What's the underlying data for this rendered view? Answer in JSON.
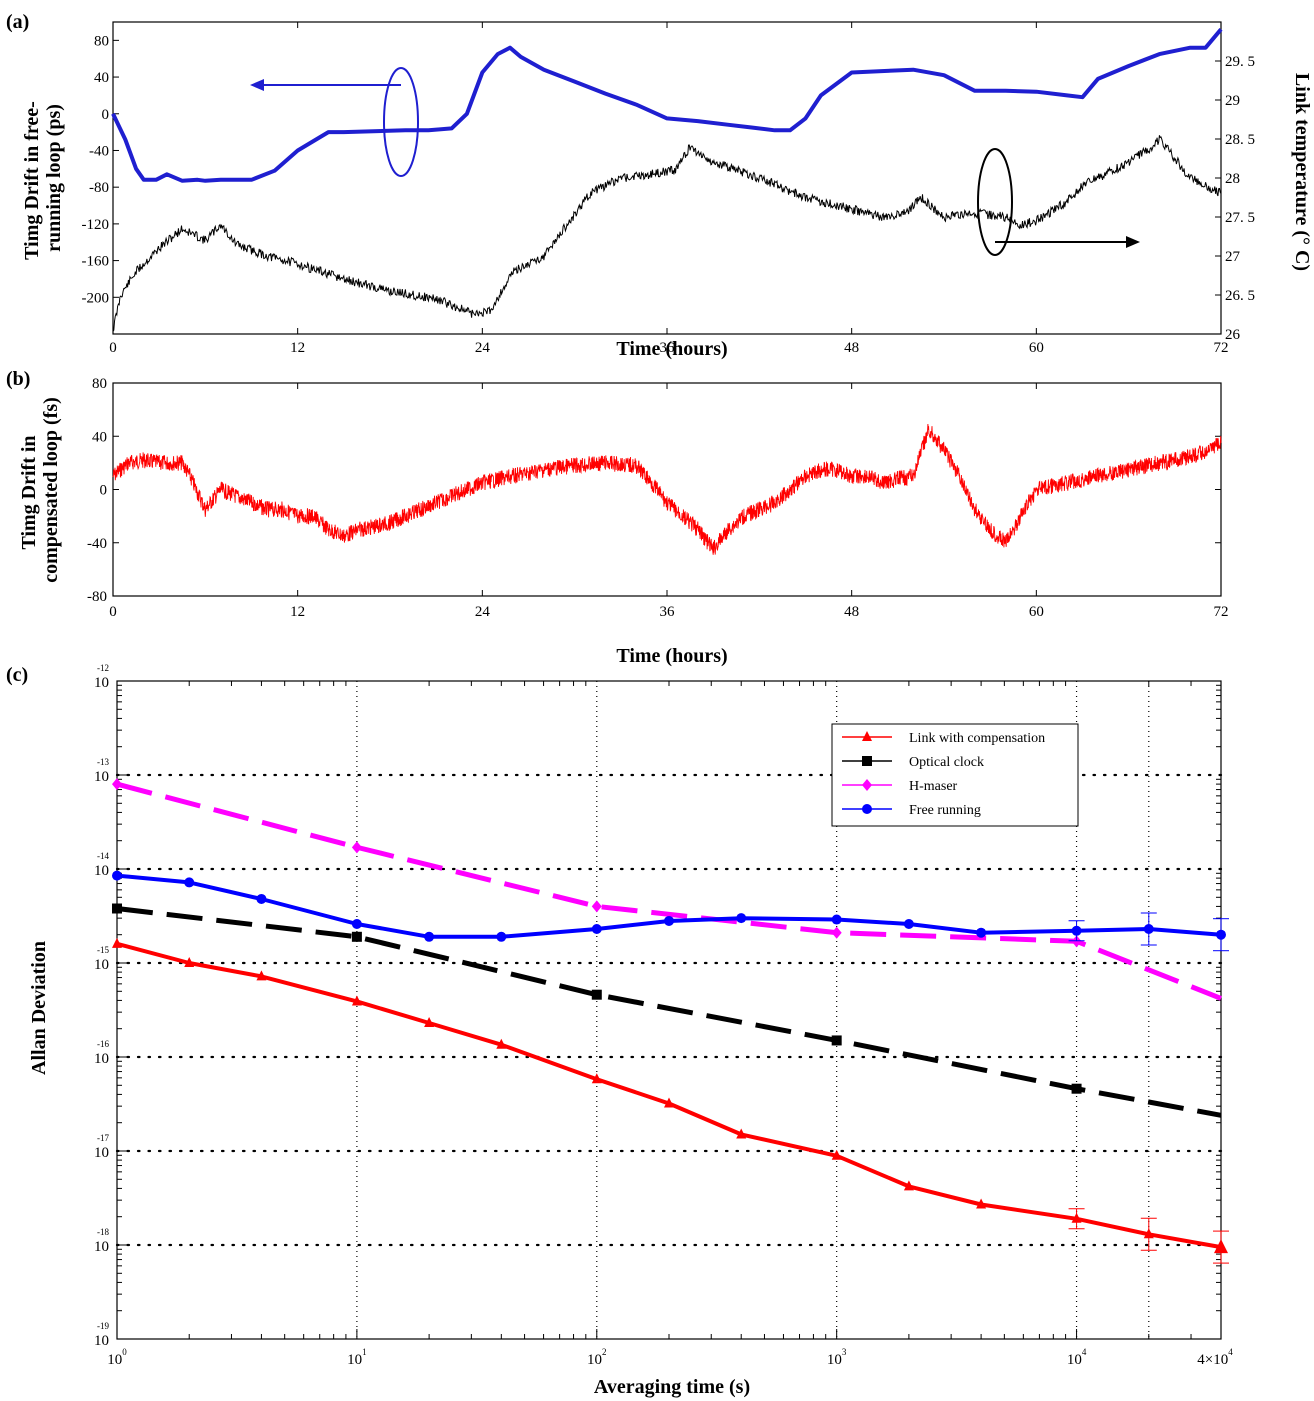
{
  "chart_data": [
    {
      "panel_label": "(a)",
      "type": "line",
      "xlabel": "Time (hours)",
      "ylabel_left": "Timg Drift in free-running loop (ps)",
      "ylabel_right": "Link temperature (° C)",
      "xlim": [
        0,
        72
      ],
      "ylim_left": [
        -240,
        100
      ],
      "ylim_right": [
        26,
        30
      ],
      "x_ticks": [
        "0",
        "12",
        "24",
        "36",
        "48",
        "60",
        "72"
      ],
      "y_ticks_left": [
        "80",
        "40",
        "0",
        "-40",
        "-80",
        "-120",
        "-160",
        "-200"
      ],
      "y_ticks_right": [
        "29. 5",
        "29",
        "28. 5",
        "28",
        "27. 5",
        "27",
        "26. 5",
        "26"
      ],
      "annotations": [
        "ellipse with arrow pointing left (blue curve → left axis)",
        "ellipse with arrow pointing right (black curve → right axis)"
      ],
      "series": [
        {
          "axis": "left",
          "color": "#1f1fd0",
          "x": [
            0,
            0.8,
            1.5,
            2,
            2.8,
            3.5,
            4.5,
            5.5,
            6,
            7,
            9,
            10.5,
            12,
            14,
            15,
            19,
            20.5,
            22,
            23,
            24,
            25,
            25.8,
            26.5,
            28,
            30,
            32,
            34,
            36,
            38,
            40,
            41.5,
            43,
            44,
            45,
            46,
            48,
            52,
            54,
            56,
            58,
            60,
            62,
            63,
            64,
            66,
            68,
            70,
            71,
            72
          ],
          "y": [
            0,
            -28,
            -60,
            -72,
            -72,
            -66,
            -73,
            -72,
            -73,
            -72,
            -72,
            -62,
            -40,
            -20,
            -20,
            -18,
            -18,
            -16,
            0,
            45,
            65,
            72,
            62,
            48,
            35,
            22,
            10,
            -5,
            -8,
            -12,
            -15,
            -18,
            -18,
            -5,
            20,
            45,
            48,
            42,
            25,
            25,
            24,
            20,
            18,
            38,
            52,
            65,
            72,
            72,
            92
          ]
        },
        {
          "axis": "right",
          "color": "#000000",
          "x": [
            0,
            0.5,
            1.5,
            3,
            4.5,
            6,
            7,
            8,
            10,
            12,
            15,
            18,
            21,
            23.5,
            24.5,
            26,
            28,
            29.5,
            31,
            33,
            35,
            36.5,
            37.5,
            39,
            42,
            45,
            48,
            50,
            51.5,
            52.5,
            54,
            56,
            58,
            59,
            60,
            62,
            63,
            64,
            66,
            67.5,
            68,
            70,
            72
          ],
          "y": [
            26.05,
            26.5,
            26.8,
            27.1,
            27.35,
            27.2,
            27.4,
            27.15,
            27,
            26.9,
            26.7,
            26.55,
            26.45,
            26.25,
            26.3,
            26.8,
            27,
            27.4,
            27.8,
            28,
            28.05,
            28.1,
            28.4,
            28.2,
            28,
            27.75,
            27.6,
            27.5,
            27.55,
            27.75,
            27.5,
            27.55,
            27.5,
            27.4,
            27.45,
            27.7,
            27.9,
            28,
            28.2,
            28.4,
            28.5,
            28,
            27.8
          ]
        }
      ]
    },
    {
      "panel_label": "(b)",
      "type": "line",
      "xlabel": "Time (hours)",
      "ylabel": "Timg Drift in compensated loop (fs)",
      "xlim": [
        0,
        72
      ],
      "ylim": [
        -80,
        80
      ],
      "x_ticks": [
        "0",
        "12",
        "24",
        "36",
        "48",
        "60",
        "72"
      ],
      "y_ticks": [
        "80",
        "40",
        "0",
        "-40",
        "-80"
      ],
      "series": [
        {
          "color": "#ff0000",
          "x": [
            0,
            1,
            2,
            3,
            4.5,
            5,
            6,
            7,
            8,
            9,
            10,
            11,
            12,
            13,
            14,
            15,
            16,
            17,
            18,
            20,
            22,
            24,
            26,
            28,
            30,
            32,
            34,
            35,
            36,
            37,
            38,
            39,
            40,
            41,
            42,
            43,
            44,
            45,
            46,
            47,
            48,
            49,
            50,
            51,
            52,
            53,
            54,
            55,
            56,
            57,
            58,
            59,
            60,
            62,
            64,
            66,
            68,
            70,
            71,
            72
          ],
          "y": [
            10,
            20,
            22,
            20,
            20,
            10,
            -15,
            0,
            -5,
            -10,
            -15,
            -15,
            -20,
            -20,
            -30,
            -35,
            -30,
            -28,
            -25,
            -15,
            -5,
            5,
            10,
            15,
            18,
            20,
            18,
            5,
            -10,
            -20,
            -30,
            -45,
            -30,
            -20,
            -15,
            -10,
            0,
            10,
            15,
            15,
            10,
            10,
            5,
            8,
            10,
            45,
            30,
            10,
            -15,
            -30,
            -40,
            -20,
            0,
            5,
            10,
            15,
            20,
            25,
            28,
            35
          ]
        }
      ]
    },
    {
      "panel_label": "(c)",
      "type": "line",
      "xlabel": "Averaging time (s)",
      "ylabel": "Allan Deviation",
      "x_scale": "log",
      "y_scale": "log",
      "xlim": [
        1,
        40000
      ],
      "ylim": [
        1e-19,
        1e-12
      ],
      "x_ticks": [
        "10^0",
        "10^1",
        "10^2",
        "10^3",
        "10^4",
        "4×10^4"
      ],
      "y_ticks": [
        "10^-12",
        "10^-13",
        "10^-14",
        "10^-15",
        "10^-16",
        "10^-17",
        "10^-18",
        "10^-19"
      ],
      "grid": true,
      "legend_position": "top-right",
      "series": [
        {
          "name": "Link with compensation",
          "color": "#ff0000",
          "style": "solid",
          "marker": "triangle",
          "x": [
            1,
            2,
            4,
            10,
            20,
            40,
            100,
            200,
            400,
            1000,
            2000,
            4000,
            10000,
            20000,
            40000
          ],
          "y": [
            1.6e-15,
            1e-15,
            7.2e-16,
            3.9e-16,
            2.3e-16,
            1.35e-16,
            5.8e-17,
            3.2e-17,
            1.5e-17,
            8.9e-18,
            4.2e-18,
            2.7e-18,
            1.9e-18,
            1.3e-18,
            9.5e-19
          ]
        },
        {
          "name": "Optical clock",
          "color": "#000000",
          "style": "dashed",
          "marker": "square",
          "x": [
            1,
            10,
            100,
            1000,
            10000,
            40000
          ],
          "y": [
            3.8e-15,
            1.9e-15,
            4.6e-16,
            1.5e-16,
            4.6e-17,
            2.4e-17
          ]
        },
        {
          "name": "H-maser",
          "color": "#ff00ff",
          "style": "dashed",
          "marker": "diamond",
          "x": [
            1,
            10,
            100,
            1000,
            10000,
            40000
          ],
          "y": [
            8e-14,
            1.7e-14,
            4e-15,
            2.1e-15,
            1.7e-15,
            4.2e-16
          ]
        },
        {
          "name": "Free running",
          "color": "#0000ff",
          "style": "solid",
          "marker": "circle",
          "x": [
            1,
            2,
            4,
            10,
            20,
            40,
            100,
            200,
            400,
            1000,
            2000,
            4000,
            10000,
            20000,
            40000
          ],
          "y": [
            8.5e-15,
            7.2e-15,
            4.8e-15,
            2.6e-15,
            1.9e-15,
            1.9e-15,
            2.3e-15,
            2.8e-15,
            3e-15,
            2.9e-15,
            2.6e-15,
            2.1e-15,
            2.2e-15,
            2.3e-15,
            2e-15
          ]
        }
      ]
    }
  ]
}
